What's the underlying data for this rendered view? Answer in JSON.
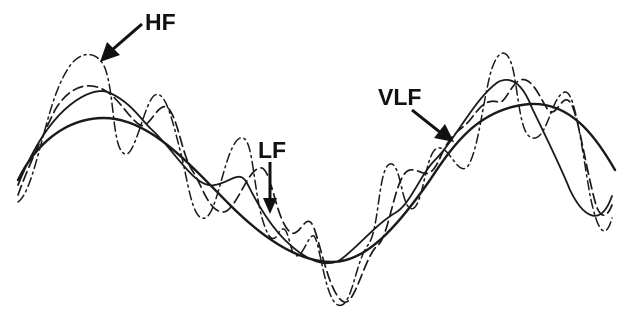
{
  "labels": {
    "hf": "HF",
    "lf": "LF",
    "vlf": "VLF"
  },
  "colors": {
    "ink": "#111111",
    "background": "#ffffff"
  }
}
